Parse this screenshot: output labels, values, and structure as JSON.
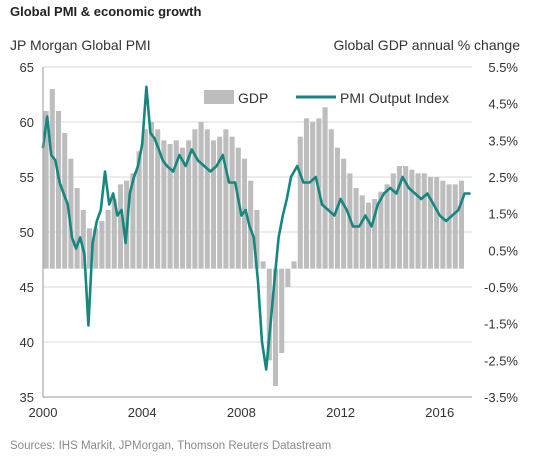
{
  "header": {
    "title": "Global PMI & economic growth",
    "left_axis_title": "JP Morgan Global PMI",
    "right_axis_title": "Global GDP annual % change",
    "source": "Sources: IHS Markit, JPMorgan, Thomson Reuters Datastream"
  },
  "colors": {
    "pmi_line": "#16877f",
    "gdp_bars": "#bdbdbd",
    "grid": "#d8d8d8"
  },
  "chart_data": {
    "type": "bar",
    "title": "Global PMI & economic growth",
    "ylabel": "JP Morgan Global PMI",
    "y2label": "Global GDP annual % change",
    "ylim": [
      35,
      65
    ],
    "y2lim": [
      -3.5,
      5.5
    ],
    "yticks": [
      35,
      40,
      45,
      50,
      55,
      60,
      65
    ],
    "y2ticks": [
      "-3.5%",
      "-2.5%",
      "-1.5%",
      "-0.5%",
      "0.5%",
      "1.5%",
      "2.5%",
      "3.5%",
      "4.5%",
      "5.5%"
    ],
    "y2tick_values": [
      -3.5,
      -2.5,
      -1.5,
      -0.5,
      0.5,
      1.5,
      2.5,
      3.5,
      4.5,
      5.5
    ],
    "xlim": [
      2000,
      2017.3
    ],
    "xticks": [
      "2000",
      "2004",
      "2008",
      "2012",
      "2016"
    ],
    "xtick_values": [
      2000,
      2004,
      2008,
      2012,
      2016
    ],
    "grid": true,
    "legend": {
      "position": "top-right",
      "gdp_label": "GDP",
      "pmi_label": "PMI Output Index"
    },
    "gdp_series": {
      "name": "GDP",
      "axis": "right",
      "baseline": 0.0,
      "x": [
        2000.0,
        2000.25,
        2000.5,
        2000.75,
        2001.0,
        2001.25,
        2001.5,
        2001.75,
        2002.0,
        2002.25,
        2002.5,
        2002.75,
        2003.0,
        2003.25,
        2003.5,
        2003.75,
        2004.0,
        2004.25,
        2004.5,
        2004.75,
        2005.0,
        2005.25,
        2005.5,
        2005.75,
        2006.0,
        2006.25,
        2006.5,
        2006.75,
        2007.0,
        2007.25,
        2007.5,
        2007.75,
        2008.0,
        2008.25,
        2008.5,
        2008.75,
        2009.0,
        2009.25,
        2009.5,
        2009.75,
        2010.0,
        2010.25,
        2010.5,
        2010.75,
        2011.0,
        2011.25,
        2011.5,
        2011.75,
        2012.0,
        2012.25,
        2012.5,
        2012.75,
        2013.0,
        2013.25,
        2013.5,
        2013.75,
        2014.0,
        2014.25,
        2014.5,
        2014.75,
        2015.0,
        2015.25,
        2015.5,
        2015.75,
        2016.0,
        2016.25,
        2016.5,
        2016.75
      ],
      "values": [
        4.3,
        4.9,
        4.3,
        3.7,
        3.0,
        2.2,
        1.6,
        1.1,
        1.1,
        1.3,
        1.6,
        1.9,
        2.3,
        2.4,
        2.6,
        3.2,
        3.8,
        4.0,
        3.8,
        3.5,
        3.4,
        3.5,
        3.3,
        3.5,
        3.8,
        4.0,
        3.8,
        3.5,
        3.6,
        3.8,
        3.6,
        3.3,
        3.0,
        2.4,
        1.6,
        0.2,
        -2.5,
        -3.2,
        -2.3,
        -0.5,
        0.2,
        3.6,
        4.1,
        4.0,
        4.1,
        4.4,
        3.8,
        3.3,
        3.0,
        2.6,
        2.2,
        2.0,
        1.8,
        1.9,
        2.1,
        2.3,
        2.6,
        2.8,
        2.8,
        2.7,
        2.6,
        2.6,
        2.5,
        2.5,
        2.4,
        2.3,
        2.3,
        2.4
      ]
    },
    "pmi_series": {
      "name": "PMI Output Index",
      "axis": "left",
      "x": [
        2000.0,
        2000.17,
        2000.33,
        2000.5,
        2000.67,
        2000.83,
        2001.0,
        2001.17,
        2001.33,
        2001.5,
        2001.67,
        2001.83,
        2002.0,
        2002.17,
        2002.33,
        2002.5,
        2002.67,
        2002.83,
        2003.0,
        2003.17,
        2003.33,
        2003.5,
        2003.67,
        2003.83,
        2004.0,
        2004.17,
        2004.33,
        2004.5,
        2004.67,
        2004.83,
        2005.0,
        2005.25,
        2005.5,
        2005.75,
        2006.0,
        2006.25,
        2006.5,
        2006.75,
        2007.0,
        2007.25,
        2007.5,
        2007.75,
        2008.0,
        2008.17,
        2008.33,
        2008.5,
        2008.67,
        2008.83,
        2009.0,
        2009.17,
        2009.33,
        2009.5,
        2009.67,
        2009.83,
        2010.0,
        2010.25,
        2010.5,
        2010.75,
        2011.0,
        2011.25,
        2011.5,
        2011.75,
        2012.0,
        2012.25,
        2012.5,
        2012.75,
        2013.0,
        2013.25,
        2013.5,
        2013.75,
        2014.0,
        2014.25,
        2014.5,
        2014.75,
        2015.0,
        2015.25,
        2015.5,
        2015.75,
        2016.0,
        2016.25,
        2016.5,
        2016.75,
        2017.0,
        2017.2
      ],
      "values": [
        57.7,
        60.5,
        57.0,
        56.5,
        54.5,
        53.5,
        52.5,
        49.5,
        48.5,
        49.5,
        48.0,
        41.5,
        49.0,
        51.0,
        52.0,
        55.5,
        52.5,
        53.5,
        51.5,
        52.0,
        49.0,
        53.5,
        55.0,
        56.0,
        58.0,
        63.2,
        59.0,
        58.5,
        57.5,
        56.5,
        56.0,
        55.5,
        57.0,
        56.0,
        57.5,
        56.5,
        56.0,
        55.5,
        56.0,
        57.0,
        54.5,
        54.5,
        51.5,
        52.0,
        50.5,
        49.5,
        45.5,
        40.0,
        37.5,
        41.5,
        45.5,
        49.5,
        51.5,
        53.0,
        55.0,
        56.0,
        54.5,
        54.5,
        55.0,
        52.5,
        52.0,
        51.5,
        53.0,
        52.0,
        50.5,
        50.5,
        51.5,
        50.5,
        52.5,
        53.5,
        54.0,
        53.5,
        55.0,
        54.0,
        53.5,
        53.0,
        53.5,
        52.5,
        51.5,
        51.0,
        51.5,
        52.0,
        53.5,
        53.5
      ]
    }
  }
}
